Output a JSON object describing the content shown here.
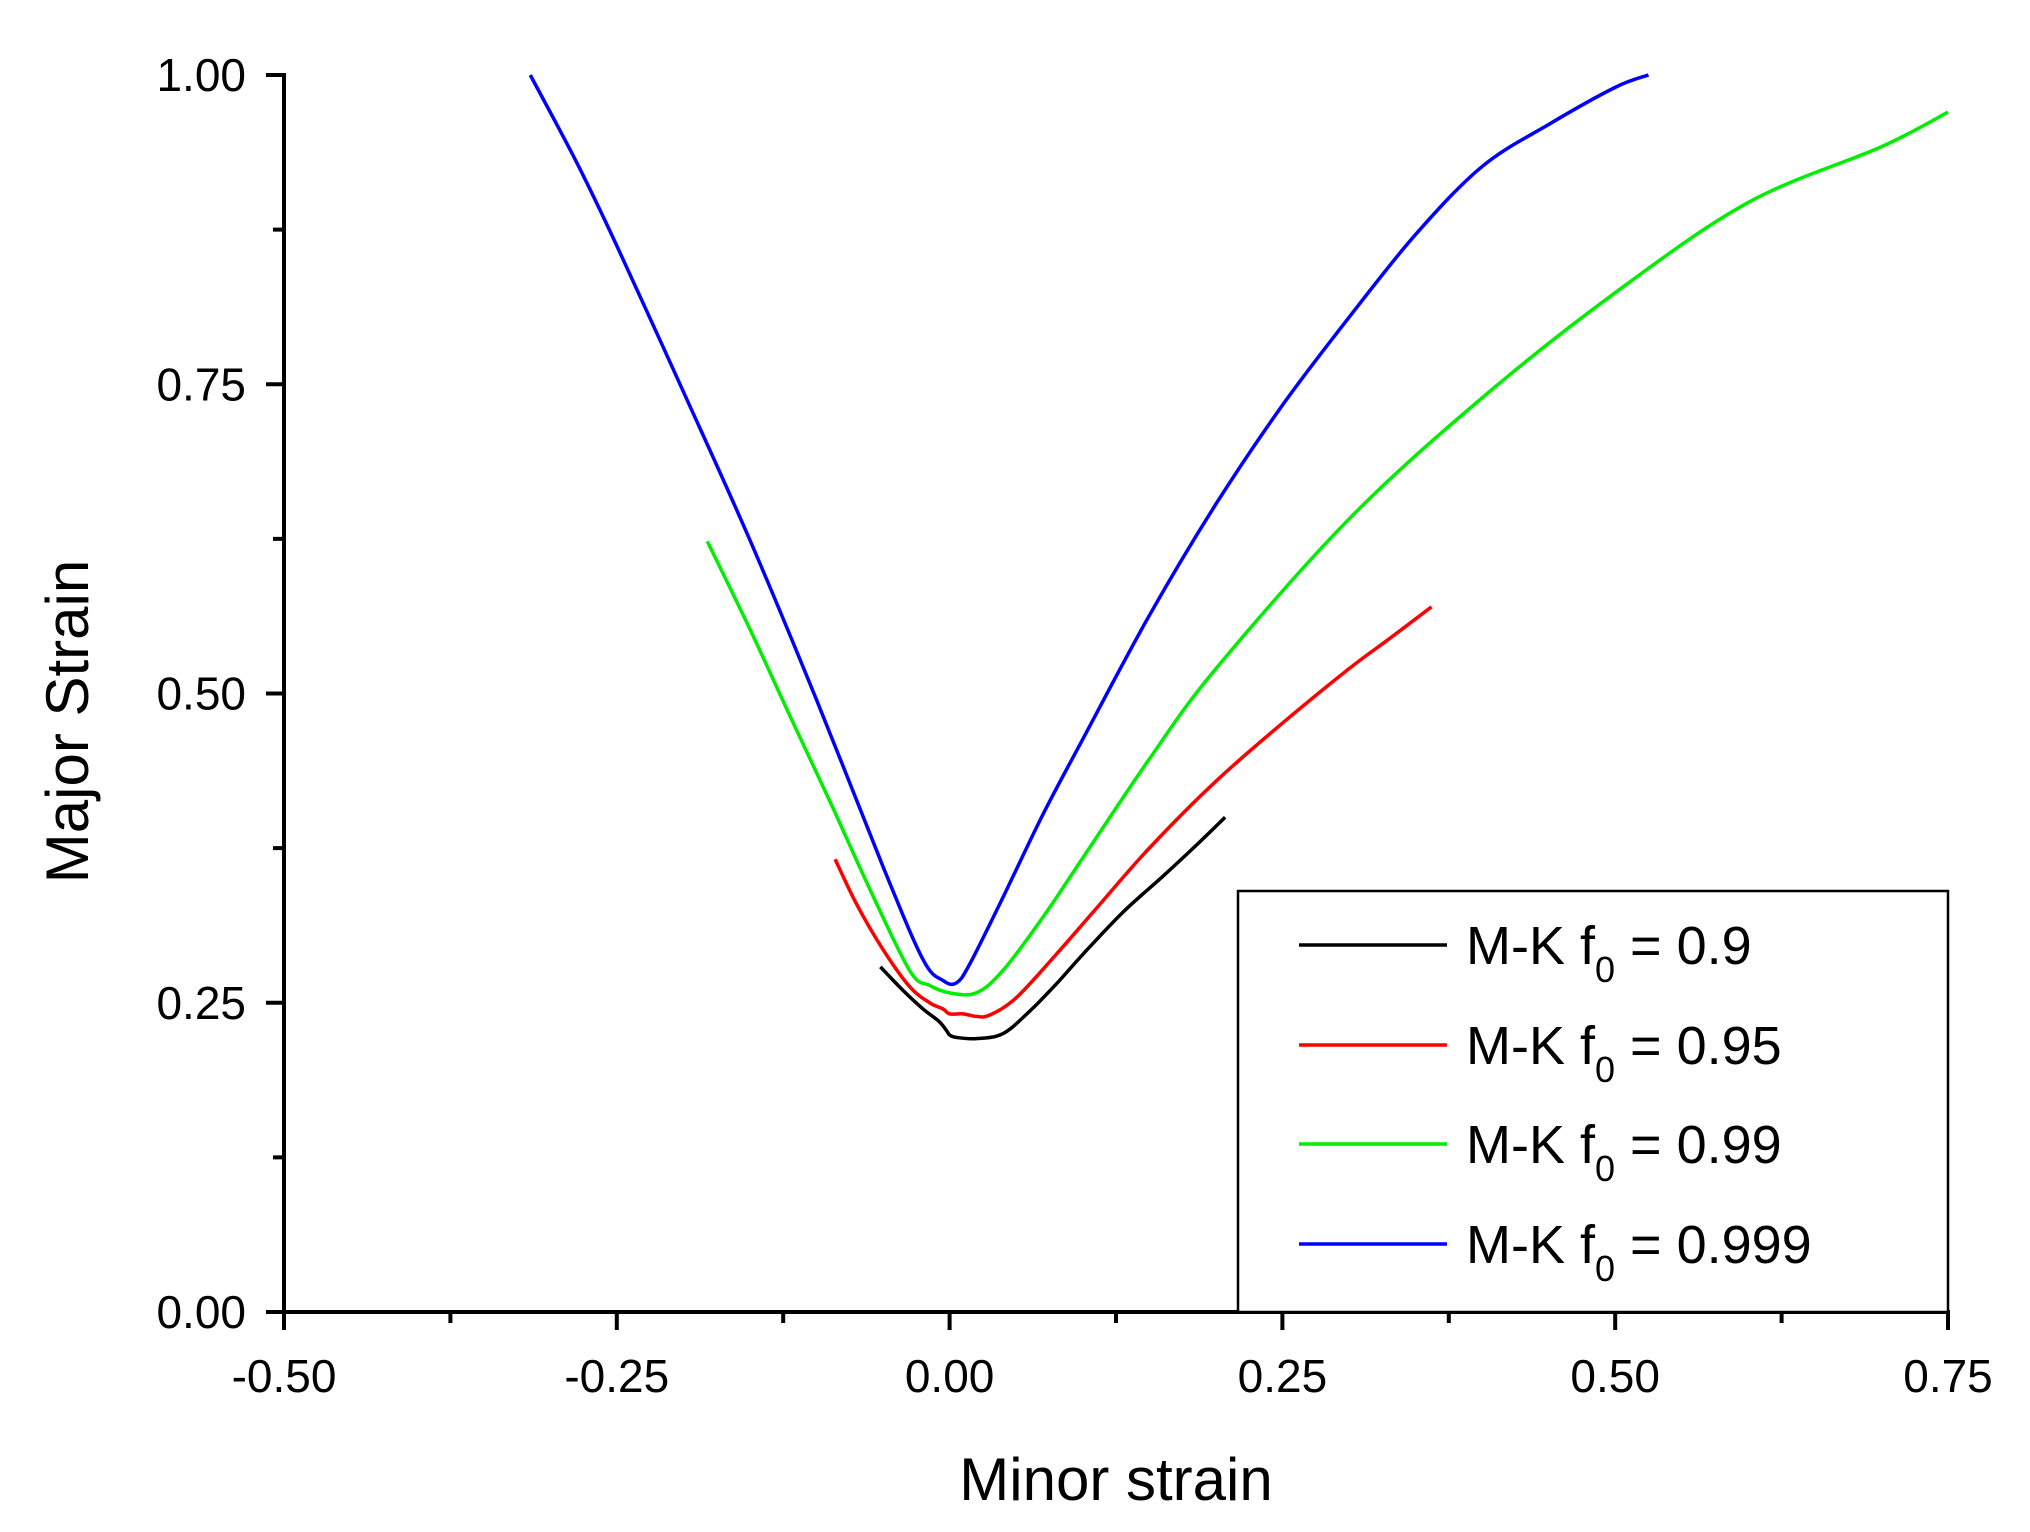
{
  "chart_data": {
    "type": "line",
    "title": "",
    "xlabel": "Minor strain",
    "ylabel": "Major Strain",
    "xlim": [
      -0.5,
      0.75
    ],
    "ylim": [
      0.0,
      1.0
    ],
    "x_ticks": [
      -0.5,
      -0.25,
      0.0,
      0.25,
      0.5,
      0.75
    ],
    "x_tick_labels": [
      "-0.50",
      "-0.25",
      "0.00",
      "0.25",
      "0.50",
      "0.75"
    ],
    "y_ticks": [
      0.0,
      0.25,
      0.5,
      0.75,
      1.0
    ],
    "y_tick_labels": [
      "0.00",
      "0.25",
      "0.50",
      "0.75",
      "1.00"
    ],
    "x_minor_ticks": [
      -0.375,
      -0.125,
      0.125,
      0.375,
      0.625
    ],
    "y_minor_ticks": [
      0.125,
      0.375,
      0.625,
      0.875
    ],
    "grid": false,
    "legend_position": "bottom-right",
    "series": [
      {
        "name": "M-K f0 = 0.9",
        "label_main": "M-K f",
        "label_sub": "0",
        "label_value": " = 0.9",
        "color": "#000000",
        "x": [
          -0.052,
          -0.035,
          -0.02,
          -0.008,
          -0.002,
          0.0,
          0.005,
          0.02,
          0.04,
          0.06,
          0.08,
          0.1,
          0.13,
          0.16,
          0.185,
          0.207
        ],
        "y": [
          0.279,
          0.26,
          0.245,
          0.235,
          0.227,
          0.224,
          0.222,
          0.221,
          0.225,
          0.243,
          0.265,
          0.289,
          0.323,
          0.352,
          0.377,
          0.4
        ]
      },
      {
        "name": "M-K f0 = 0.95",
        "label_main": "M-K f",
        "label_sub": "0",
        "label_value": " = 0.95",
        "color": "#ff0000",
        "x": [
          -0.086,
          -0.07,
          -0.05,
          -0.03,
          -0.015,
          -0.005,
          0.0,
          0.01,
          0.02,
          0.03,
          0.05,
          0.08,
          0.11,
          0.15,
          0.2,
          0.25,
          0.3,
          0.33,
          0.362
        ],
        "y": [
          0.366,
          0.33,
          0.293,
          0.263,
          0.25,
          0.245,
          0.241,
          0.241,
          0.239,
          0.24,
          0.254,
          0.289,
          0.326,
          0.375,
          0.429,
          0.476,
          0.52,
          0.544,
          0.57
        ]
      },
      {
        "name": "M-K f0 = 0.99",
        "label_main": "M-K f",
        "label_sub": "0",
        "label_value": " = 0.99",
        "color": "#00ee00",
        "x": [
          -0.182,
          -0.15,
          -0.12,
          -0.09,
          -0.06,
          -0.03,
          -0.015,
          0.0,
          0.02,
          0.04,
          0.07,
          0.1,
          0.15,
          0.2,
          0.3,
          0.4,
          0.5,
          0.6,
          0.7,
          0.75
        ],
        "y": [
          0.623,
          0.552,
          0.482,
          0.413,
          0.342,
          0.276,
          0.264,
          0.258,
          0.258,
          0.276,
          0.319,
          0.367,
          0.447,
          0.52,
          0.641,
          0.739,
          0.824,
          0.897,
          0.942,
          0.97
        ]
      },
      {
        "name": "M-K f0 = 0.999",
        "label_main": "M-K f",
        "label_sub": "0",
        "label_value": " = 0.999",
        "color": "#0000ff",
        "x": [
          -0.315,
          -0.28,
          -0.25,
          -0.2,
          -0.15,
          -0.1,
          -0.05,
          -0.02,
          -0.005,
          0.005,
          0.015,
          0.04,
          0.07,
          0.1,
          0.15,
          0.2,
          0.25,
          0.3,
          0.35,
          0.4,
          0.45,
          0.5,
          0.525
        ],
        "y": [
          1.0,
          0.929,
          0.862,
          0.744,
          0.624,
          0.495,
          0.36,
          0.285,
          0.268,
          0.266,
          0.281,
          0.335,
          0.402,
          0.463,
          0.563,
          0.653,
          0.733,
          0.804,
          0.871,
          0.926,
          0.96,
          0.99,
          1.0
        ]
      }
    ]
  }
}
